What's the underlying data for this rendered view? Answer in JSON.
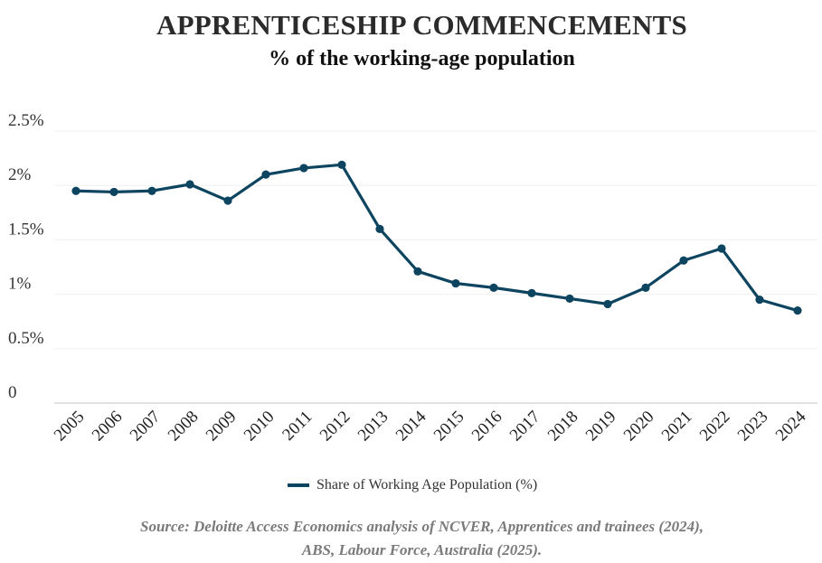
{
  "chart_data": {
    "type": "line",
    "title": "APPRENTICESHIP COMMENCEMENTS",
    "subtitle": "% of the working-age population",
    "xlabel": "",
    "ylabel": "",
    "ylim": [
      0,
      2.5
    ],
    "y_tick_labels": [
      "0",
      "0.5%",
      "1%",
      "1.5%",
      "2%",
      "2.5%"
    ],
    "y_tick_values": [
      0,
      0.5,
      1,
      1.5,
      2,
      2.5
    ],
    "categories": [
      "2005",
      "2006",
      "2007",
      "2008",
      "2009",
      "2010",
      "2011",
      "2012",
      "2013",
      "2014",
      "2015",
      "2016",
      "2017",
      "2018",
      "2019",
      "2020",
      "2021",
      "2022",
      "2023",
      "2024"
    ],
    "series": [
      {
        "name": "Share of Working Age Population (%)",
        "color": "#0d4460",
        "values": [
          1.95,
          1.94,
          1.95,
          2.01,
          1.86,
          2.1,
          2.16,
          2.19,
          1.6,
          1.21,
          1.1,
          1.06,
          1.01,
          0.96,
          0.91,
          1.06,
          1.31,
          1.42,
          0.95,
          0.85
        ]
      }
    ],
    "grid": true,
    "legend_position": "bottom-center"
  },
  "source": {
    "line1": "Source: Deloitte Access Economics analysis of NCVER, Apprentices and trainees (2024),",
    "line2": "ABS, Labour Force, Australia (2025)."
  }
}
